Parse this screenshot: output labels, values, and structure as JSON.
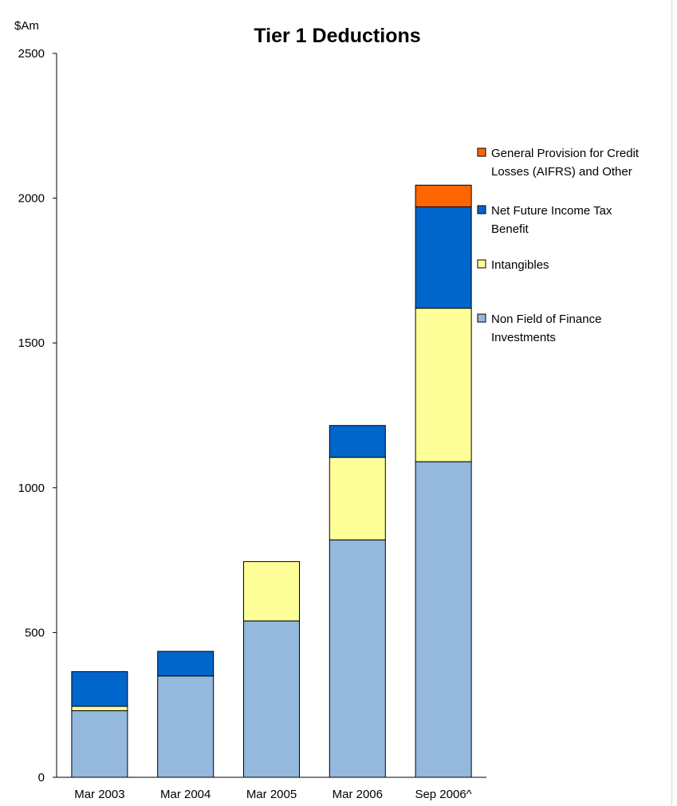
{
  "chart_data": {
    "type": "bar",
    "stacked": true,
    "title": "Tier 1 Deductions",
    "ylabel": "$Am",
    "xlabel": "",
    "ylim": [
      0,
      2500
    ],
    "yticks": [
      "0",
      "500",
      "1000",
      "1500",
      "2000",
      "2500"
    ],
    "categories": [
      "Mar 2003",
      "Mar 2004",
      "Mar 2005",
      "Mar 2006",
      "Sep 2006^"
    ],
    "grid": false,
    "legend_position": "right",
    "series": [
      {
        "name": "Non Field of Finance Investments",
        "name_lines": [
          "Non Field of Finance",
          "Investments"
        ],
        "color": "#95b8dd",
        "values": [
          230,
          350,
          540,
          820,
          1090
        ]
      },
      {
        "name": "Intangibles",
        "name_lines": [
          "Intangibles"
        ],
        "color": "#ffff99",
        "values": [
          15,
          0,
          205,
          285,
          530
        ]
      },
      {
        "name": "Net Future Income Tax Benefit",
        "name_lines": [
          "Net Future Income Tax",
          "Benefit"
        ],
        "color": "#0066cc",
        "values": [
          120,
          85,
          0,
          110,
          350
        ]
      },
      {
        "name": "General Provision for Credit Losses (AIFRS) and Other",
        "name_lines": [
          "General Provision for Credit",
          "Losses (AIFRS) and Other"
        ],
        "color": "#ff6600",
        "values": [
          0,
          0,
          0,
          0,
          75
        ]
      }
    ]
  }
}
